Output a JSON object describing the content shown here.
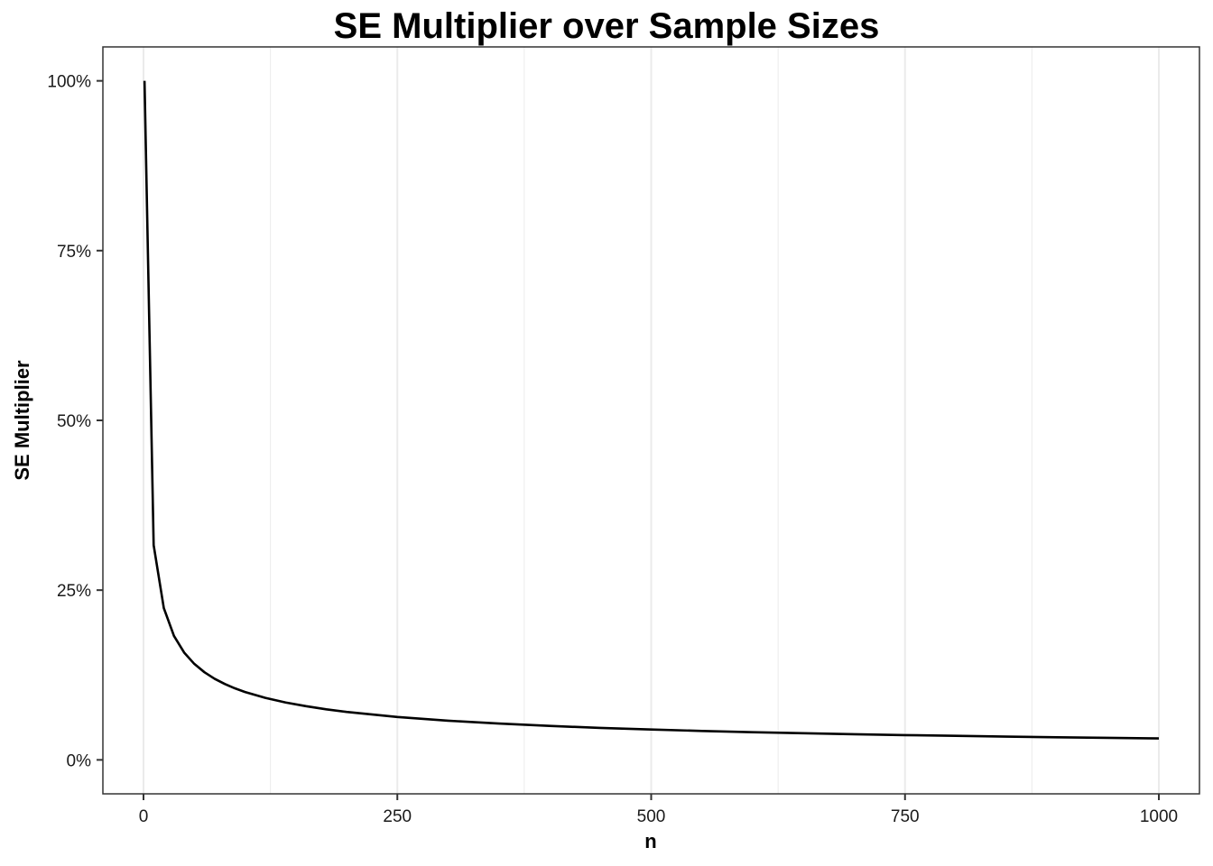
{
  "chart_data": {
    "type": "line",
    "title": "SE Multiplier over Sample Sizes",
    "xlabel": "n",
    "ylabel": "SE Multiplier",
    "xlim": [
      -40,
      1040
    ],
    "ylim": [
      -0.05,
      1.05
    ],
    "x_ticks": [
      0,
      250,
      500,
      750,
      1000
    ],
    "x_tick_labels": [
      "0",
      "250",
      "500",
      "750",
      "1000"
    ],
    "y_ticks": [
      0,
      0.25,
      0.5,
      0.75,
      1.0
    ],
    "y_tick_labels": [
      "0%",
      "25%",
      "50%",
      "75%",
      "100%"
    ],
    "grid": "vertical major and minor lines only",
    "legend": "none",
    "line_color": "#000000",
    "series": [
      {
        "x": [
          1,
          10,
          20,
          30,
          40,
          50,
          60,
          70,
          80,
          90,
          100,
          120,
          140,
          160,
          180,
          200,
          250,
          300,
          350,
          400,
          450,
          500,
          550,
          600,
          650,
          700,
          750,
          800,
          850,
          900,
          950,
          1000
        ],
        "values": [
          1.0,
          0.3162,
          0.2236,
          0.1826,
          0.1581,
          0.1414,
          0.1291,
          0.1195,
          0.1118,
          0.1054,
          0.1,
          0.0913,
          0.0845,
          0.0791,
          0.0745,
          0.0707,
          0.0632,
          0.0577,
          0.0535,
          0.05,
          0.0471,
          0.0447,
          0.0426,
          0.0408,
          0.0392,
          0.0378,
          0.0365,
          0.0354,
          0.0343,
          0.0333,
          0.0324,
          0.0316
        ]
      }
    ]
  }
}
